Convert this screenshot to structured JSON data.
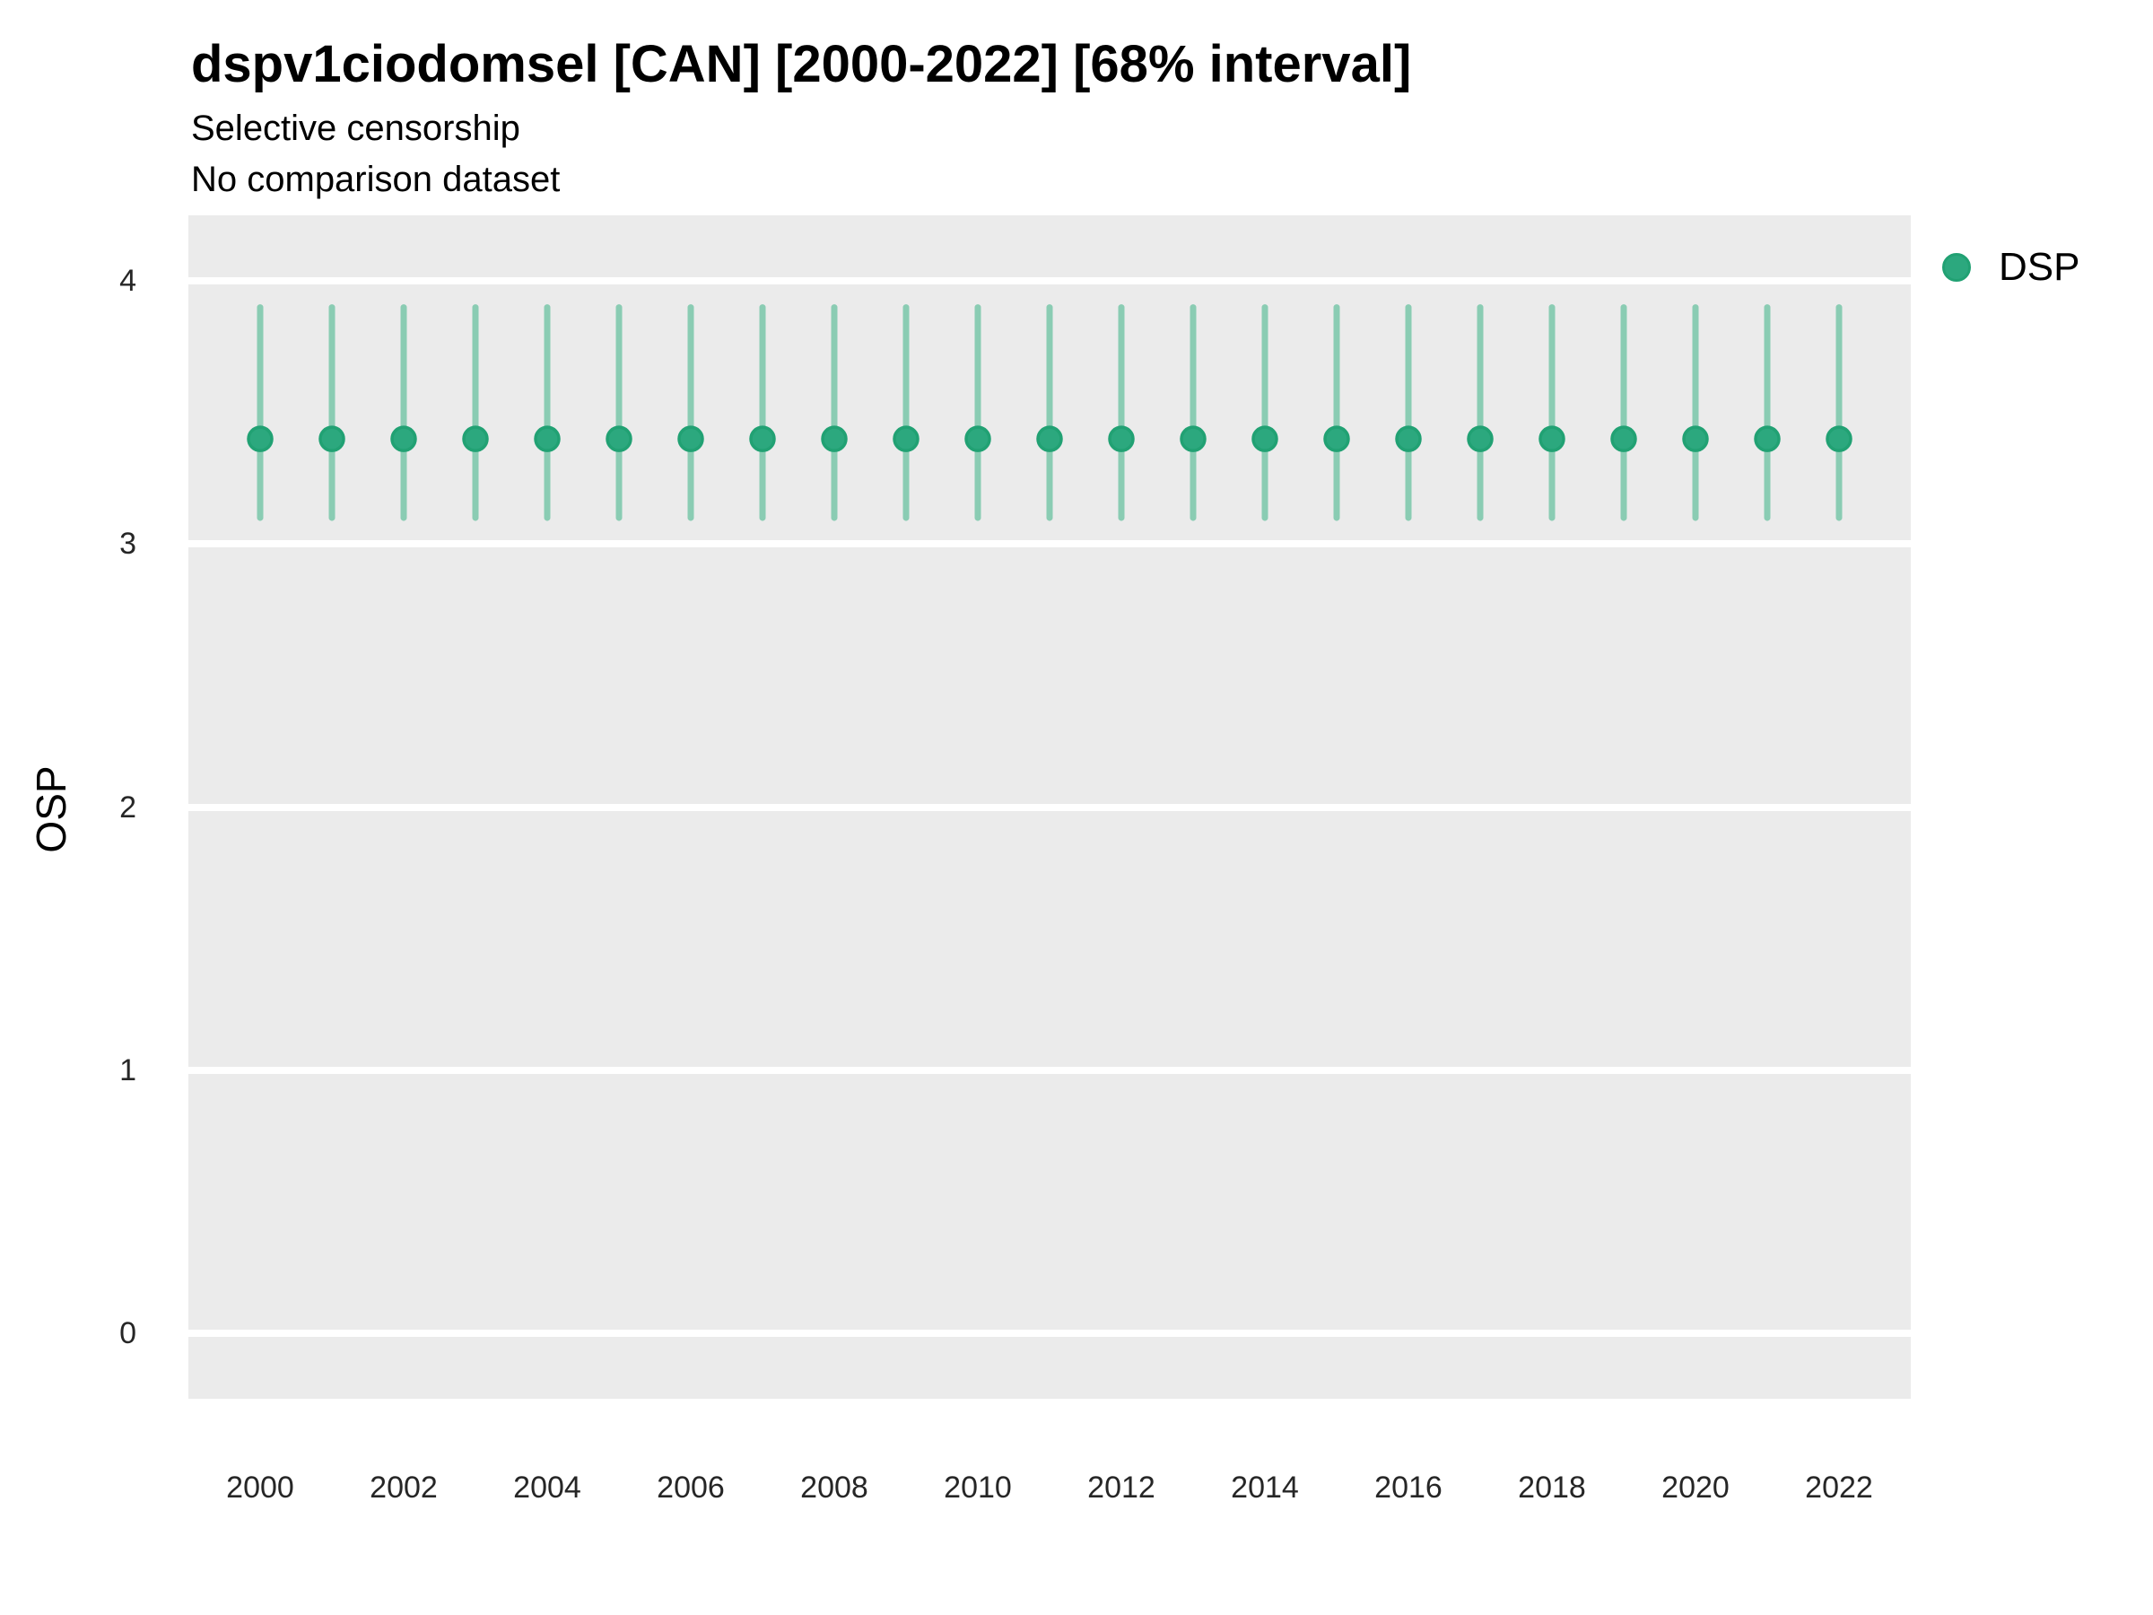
{
  "chart_data": {
    "type": "scatter",
    "title": "dspv1ciodomsel [CAN] [2000-2022] [68% interval]",
    "subtitle1": "Selective censorship",
    "subtitle2": "No comparison dataset",
    "xlabel": "",
    "ylabel": "OSP",
    "legend": {
      "label": "DSP",
      "position": "right-top"
    },
    "x": [
      2000,
      2001,
      2002,
      2003,
      2004,
      2005,
      2006,
      2007,
      2008,
      2009,
      2010,
      2011,
      2012,
      2013,
      2014,
      2015,
      2016,
      2017,
      2018,
      2019,
      2020,
      2021,
      2022
    ],
    "series": [
      {
        "name": "DSP",
        "estimates": [
          3.4,
          3.4,
          3.4,
          3.4,
          3.4,
          3.4,
          3.4,
          3.4,
          3.4,
          3.4,
          3.4,
          3.4,
          3.4,
          3.4,
          3.4,
          3.4,
          3.4,
          3.4,
          3.4,
          3.4,
          3.4,
          3.4,
          3.4
        ],
        "lower": [
          3.1,
          3.1,
          3.1,
          3.1,
          3.1,
          3.1,
          3.1,
          3.1,
          3.1,
          3.1,
          3.1,
          3.1,
          3.1,
          3.1,
          3.1,
          3.1,
          3.1,
          3.1,
          3.1,
          3.1,
          3.1,
          3.1,
          3.1
        ],
        "upper": [
          3.9,
          3.9,
          3.9,
          3.9,
          3.9,
          3.9,
          3.9,
          3.9,
          3.9,
          3.9,
          3.9,
          3.9,
          3.9,
          3.9,
          3.9,
          3.9,
          3.9,
          3.9,
          3.9,
          3.9,
          3.9,
          3.9,
          3.9
        ]
      }
    ],
    "interval_note": "68% interval",
    "xlim": [
      1999,
      2023
    ],
    "ylim": [
      -0.25,
      4.25
    ],
    "yticks": [
      0,
      1,
      2,
      3,
      4
    ],
    "ytick_labels": [
      "0",
      "1",
      "2",
      "3",
      "4"
    ],
    "xticks": [
      2000,
      2002,
      2004,
      2006,
      2008,
      2010,
      2012,
      2014,
      2016,
      2018,
      2020,
      2022
    ],
    "xtick_labels": [
      "2000",
      "2002",
      "2004",
      "2006",
      "2008",
      "2010",
      "2012",
      "2014",
      "2016",
      "2018",
      "2020",
      "2022"
    ],
    "grid": "major-horizontal-only",
    "colors": {
      "point_fill": "#2ca87e",
      "point_stroke": "#21a173",
      "interval_bar": "#8accb3",
      "panel_background": "#ebebeb",
      "gridline": "#ffffff",
      "text": "#000000",
      "tick_text": "#262626"
    }
  }
}
